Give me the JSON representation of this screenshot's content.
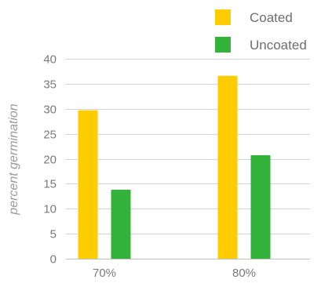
{
  "chart_data": {
    "type": "bar",
    "categories": [
      "70%",
      "80%"
    ],
    "series": [
      {
        "name": "Coated",
        "values": [
          29.7,
          36.6
        ],
        "color": "#FFCC00"
      },
      {
        "name": "Uncoated",
        "values": [
          13.8,
          20.7
        ],
        "color": "#33B33A"
      }
    ],
    "ylabel": "percent germination",
    "ylim": [
      0,
      40
    ],
    "yticks": [
      0,
      5,
      10,
      15,
      20,
      25,
      30,
      35,
      40
    ],
    "grid": true,
    "legend_position": "top-right"
  }
}
